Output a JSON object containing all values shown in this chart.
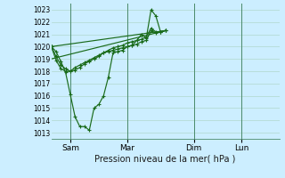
{
  "title": "Pression niveau de la mer( hPa )",
  "bg_color": "#cceeff",
  "grid_color": "#b0d8cc",
  "line_color": "#1a6b1a",
  "x_tick_labels": [
    "Sam",
    "Mar",
    "Dim",
    "Lun"
  ],
  "ylim": [
    1012.5,
    1023.5
  ],
  "yticks": [
    1013,
    1014,
    1015,
    1016,
    1017,
    1018,
    1019,
    1020,
    1021,
    1022,
    1023
  ],
  "series": [
    {
      "x": [
        0,
        2,
        4,
        6,
        8,
        10,
        12,
        14,
        16,
        18,
        20,
        22,
        24,
        26,
        28,
        30,
        32,
        34,
        36,
        38,
        40,
        42,
        44,
        46,
        48
      ],
      "y": [
        1020.0,
        1019.6,
        1018.8,
        1017.9,
        1016.1,
        1014.3,
        1013.5,
        1013.5,
        1013.2,
        1015.0,
        1015.3,
        1016.0,
        1017.5,
        1019.5,
        1019.6,
        1019.7,
        1020.0,
        1020.1,
        1020.5,
        1021.0,
        1020.7,
        1023.0,
        1022.5,
        1021.2,
        1021.3
      ]
    },
    {
      "x": [
        0,
        2,
        4,
        6,
        8,
        10,
        12,
        14,
        16,
        18,
        20,
        22,
        24,
        26,
        28,
        30,
        32,
        34,
        36,
        38,
        40,
        42,
        44,
        46,
        48
      ],
      "y": [
        1020.0,
        1019.2,
        1018.5,
        1018.2,
        1018.0,
        1018.1,
        1018.3,
        1018.6,
        1018.8,
        1019.0,
        1019.2,
        1019.5,
        1019.7,
        1019.9,
        1020.0,
        1020.1,
        1020.3,
        1020.4,
        1020.5,
        1020.6,
        1020.8,
        1021.5,
        1021.2,
        1021.2,
        1021.3
      ]
    },
    {
      "x": [
        0,
        2,
        4,
        6,
        8,
        10,
        12,
        14,
        16,
        18,
        20,
        22,
        24,
        26,
        28,
        30,
        32,
        34,
        36,
        38,
        40,
        42,
        44,
        46,
        48
      ],
      "y": [
        1020.0,
        1018.9,
        1018.2,
        1018.0,
        1018.0,
        1018.3,
        1018.5,
        1018.7,
        1018.9,
        1019.1,
        1019.3,
        1019.5,
        1019.6,
        1019.7,
        1019.8,
        1019.9,
        1020.0,
        1020.1,
        1020.2,
        1020.4,
        1020.5,
        1021.3,
        1021.1,
        1021.2,
        1021.3
      ]
    },
    {
      "x": [
        0,
        48
      ],
      "y": [
        1020.0,
        1021.3
      ]
    },
    {
      "x": [
        0,
        48
      ],
      "y": [
        1019.0,
        1021.3
      ]
    }
  ],
  "x_tick_positions_hours": [
    8,
    32,
    60,
    80
  ],
  "x_max": 96,
  "day_lines_hours": [
    8,
    32,
    60,
    80
  ]
}
